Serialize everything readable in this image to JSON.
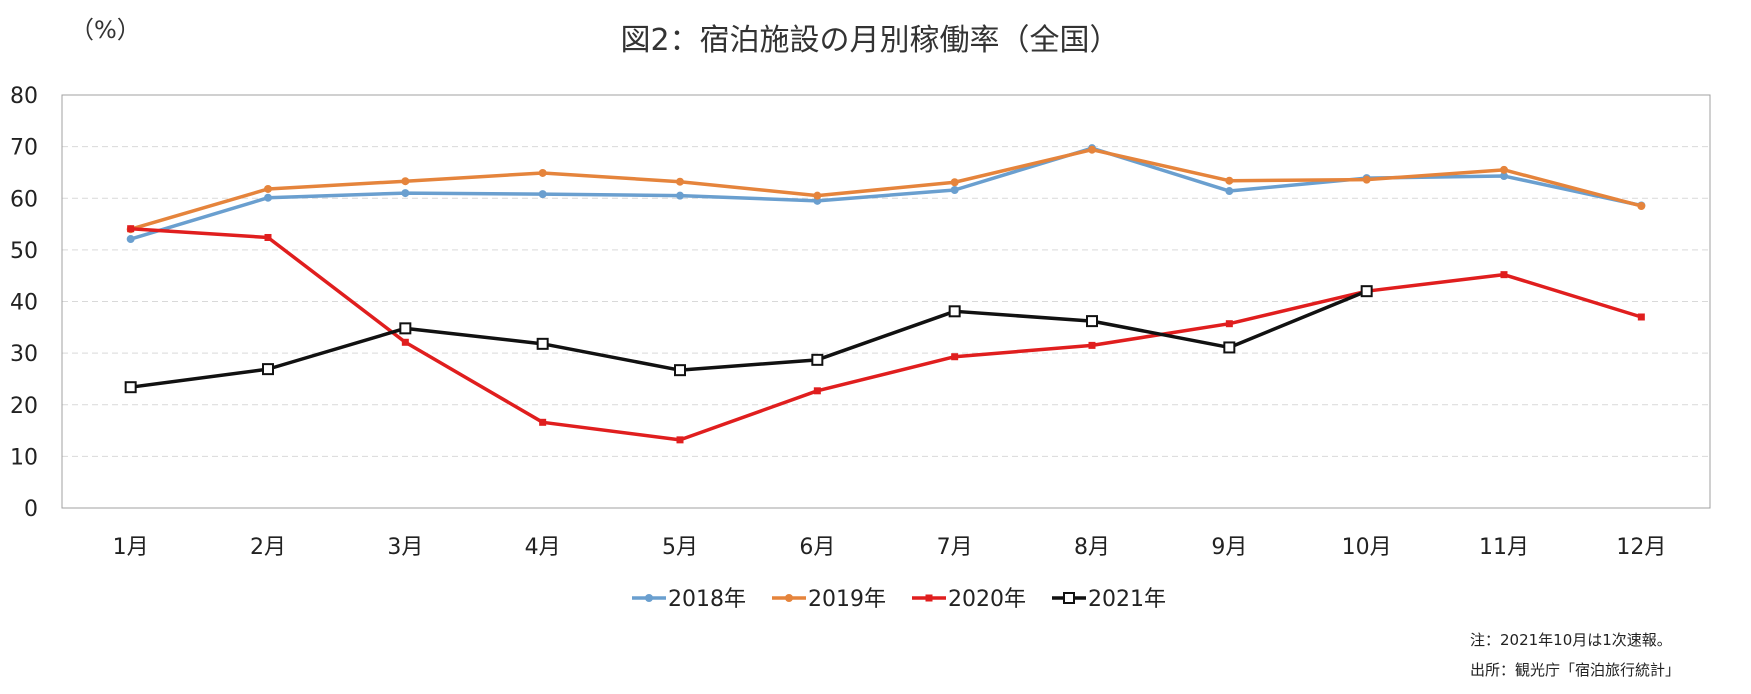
{
  "chart_data": {
    "type": "line",
    "title": "図2：宿泊施設の月別稼働率（全国）",
    "ylabel": "（%）",
    "xlabel": "",
    "ylim": [
      0,
      80
    ],
    "yticks": [
      0,
      10,
      20,
      30,
      40,
      50,
      60,
      70,
      80
    ],
    "grid": true,
    "legend_position": "bottom",
    "categories": [
      "1月",
      "2月",
      "3月",
      "4月",
      "5月",
      "6月",
      "7月",
      "8月",
      "9月",
      "10月",
      "11月",
      "12月"
    ],
    "series": [
      {
        "name": "2018年",
        "color": "#6a9fcf",
        "marker": "circle",
        "values": [
          52.1,
          60.1,
          61.0,
          60.8,
          60.5,
          59.5,
          61.6,
          69.7,
          61.4,
          63.9,
          64.3,
          58.6
        ]
      },
      {
        "name": "2019年",
        "color": "#e5843c",
        "marker": "circle",
        "values": [
          54.0,
          61.8,
          63.3,
          64.9,
          63.2,
          60.5,
          63.1,
          69.4,
          63.4,
          63.6,
          65.5,
          58.5
        ]
      },
      {
        "name": "2020年",
        "color": "#e01e1e",
        "marker": "square",
        "values": [
          54.1,
          52.4,
          32.1,
          16.6,
          13.2,
          22.7,
          29.3,
          31.5,
          35.7,
          42.0,
          45.2,
          37.0
        ]
      },
      {
        "name": "2021年",
        "color": "#111111",
        "marker": "open-square",
        "values": [
          23.4,
          26.9,
          34.8,
          31.8,
          26.7,
          28.7,
          38.1,
          36.2,
          31.1,
          42.0,
          null,
          null
        ]
      }
    ],
    "notes": [
      "注：2021年10月は1次速報。",
      "出所：観光庁「宿泊旅行統計」"
    ]
  }
}
